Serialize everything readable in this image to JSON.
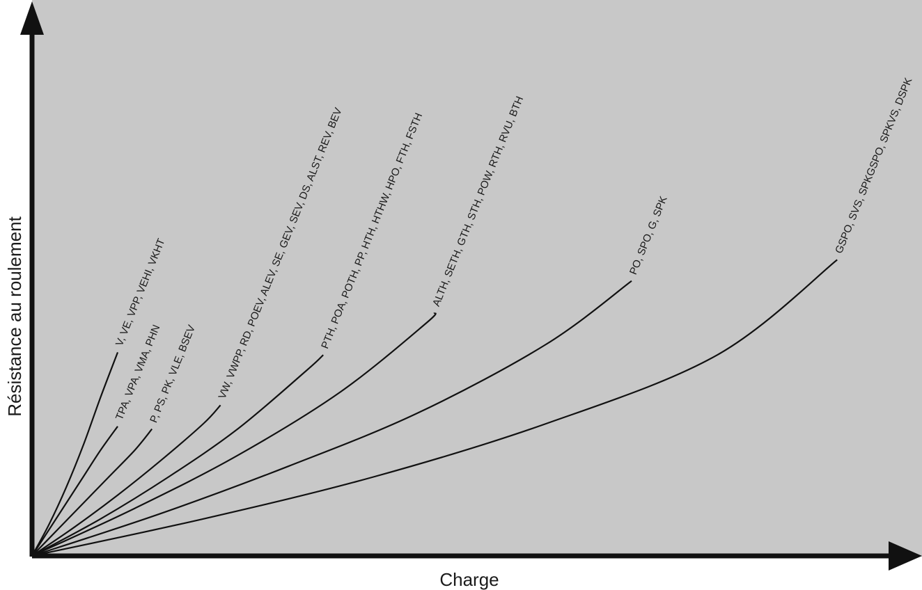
{
  "chart_data": {
    "type": "line",
    "title": "",
    "xlabel": "Charge",
    "ylabel": "Résistance au roulement",
    "xlim": [
      0,
      100
    ],
    "ylim": [
      0,
      100
    ],
    "grid": false,
    "tick_labels": false,
    "background": "#c8c8c8",
    "series": [
      {
        "label": "V, VE, VPP, VEHI, VKHT",
        "x": [
          0,
          2,
          4,
          6,
          8,
          10
        ],
        "y": [
          0,
          6,
          13,
          21,
          30,
          38.5
        ]
      },
      {
        "label": "TPA, VPA, VMA, PHN",
        "x": [
          0,
          2,
          4,
          6,
          8,
          10
        ],
        "y": [
          0,
          5,
          10,
          15,
          20,
          24.5
        ]
      },
      {
        "label": "P, PS, PK, VLE, BSEV",
        "x": [
          0,
          3,
          6,
          9,
          12,
          14
        ],
        "y": [
          0,
          5,
          10,
          15,
          20,
          24
        ]
      },
      {
        "label": "VW, VWPP, RD, POEV, ALEV, SE, GEV, SEV, DS, ALST, REV, BEV",
        "x": [
          0,
          5,
          10,
          15,
          20,
          22
        ],
        "y": [
          0,
          5.5,
          11.5,
          18,
          25,
          28.5
        ]
      },
      {
        "label": "PTH, POA, POTH, PP, HTH, HTHW, HPO, FTH, FSTH",
        "x": [
          0,
          8,
          16,
          24,
          32,
          34
        ],
        "y": [
          0,
          7,
          15,
          24,
          35,
          38
        ]
      },
      {
        "label": "ALTH, SETH, GTH, STH, POW, RTH, RVU, BTH",
        "x": [
          0,
          12,
          24,
          36,
          46,
          47
        ],
        "y": [
          0,
          9,
          19,
          31,
          44,
          46
        ]
      },
      {
        "label": "PO, SPO, G, SPK",
        "x": [
          0,
          15,
          30,
          45,
          60,
          70
        ],
        "y": [
          0,
          8,
          17,
          27,
          40,
          52
        ]
      },
      {
        "label": "GSPO, SVS, SPKGSPO, SPKVS, DSPK",
        "x": [
          0,
          20,
          40,
          60,
          80,
          94
        ],
        "y": [
          0,
          7,
          15,
          25,
          38,
          56
        ]
      }
    ]
  }
}
